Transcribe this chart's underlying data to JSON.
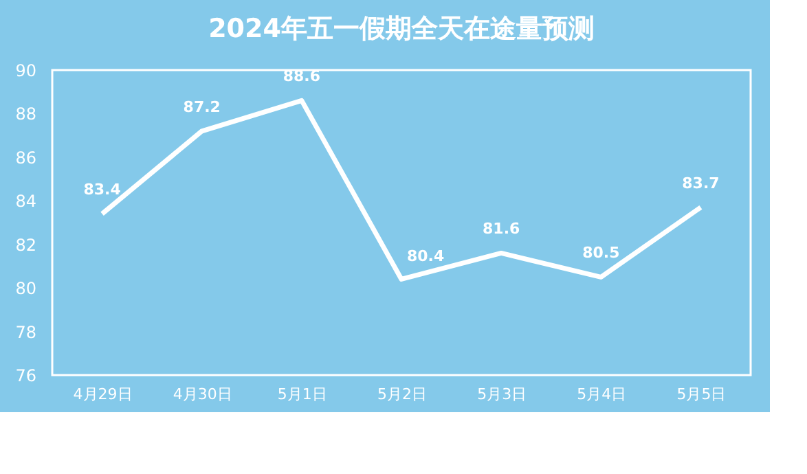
{
  "chart_data": {
    "type": "line",
    "title": "2024年五一假期全天在途量预测",
    "categories": [
      "4月29日",
      "4月30日",
      "5月1日",
      "5月2日",
      "5月3日",
      "5月4日",
      "5月5日"
    ],
    "series": [
      {
        "color": "#ffffff",
        "values": [
          83.4,
          87.2,
          88.6,
          80.4,
          81.6,
          80.5,
          83.7
        ]
      }
    ],
    "ylim": [
      76,
      90
    ],
    "yticks": [
      76,
      78,
      80,
      82,
      84,
      86,
      88,
      90
    ],
    "grid": false,
    "data_labels": true,
    "marker": "none",
    "line_style": "solid"
  }
}
